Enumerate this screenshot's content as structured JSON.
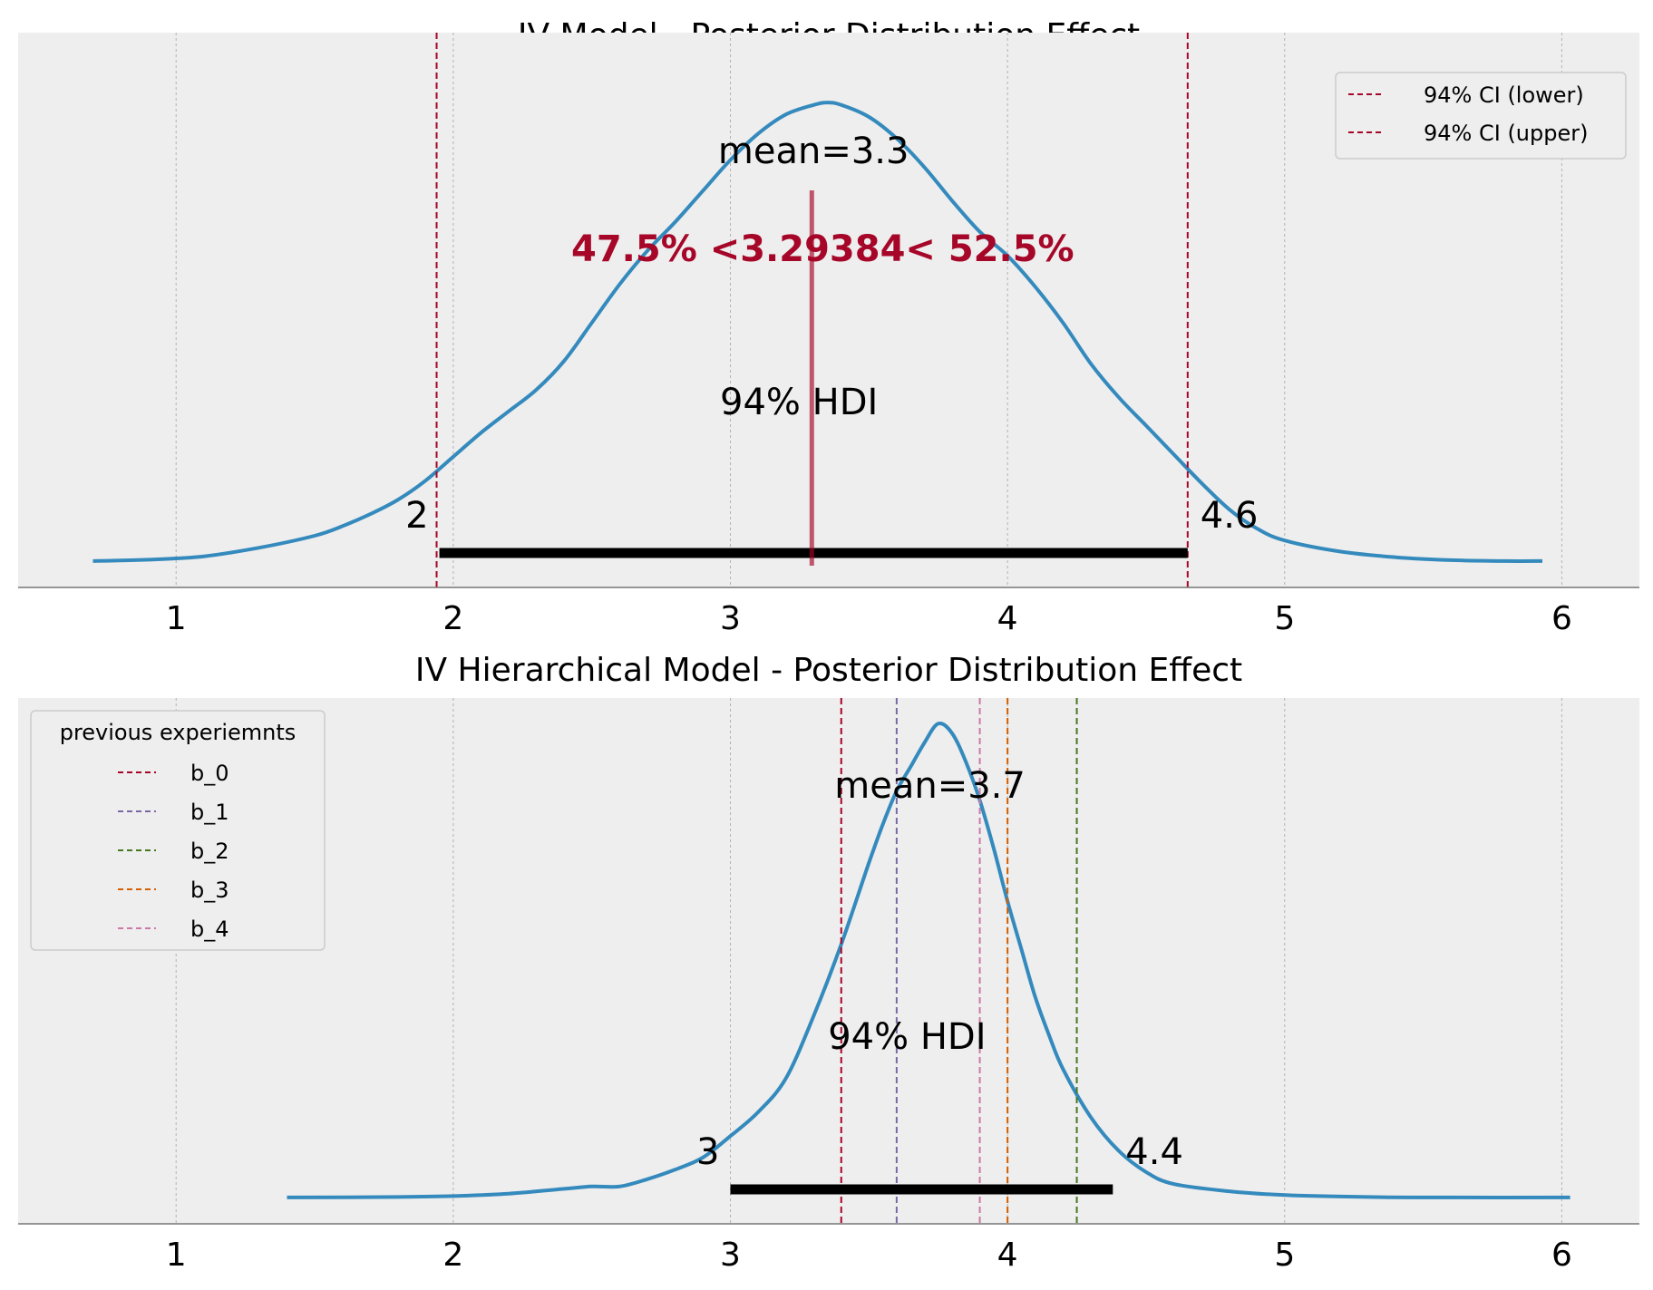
{
  "chart_data": [
    {
      "type": "area",
      "title": "IV Model - Posterior Distribution Effect",
      "xlim": [
        0.43,
        6.28
      ],
      "ylim": [
        -0.05,
        1.0
      ],
      "xticks": [
        1,
        2,
        3,
        4,
        5,
        6
      ],
      "xtick_labels": [
        "1",
        "2",
        "3",
        "4",
        "5",
        "6"
      ],
      "grid": "x",
      "legend_position": "top-right",
      "series": [
        {
          "x": [
            0.7,
            0.9,
            1.1,
            1.3,
            1.5,
            1.6,
            1.7,
            1.8,
            1.9,
            2.0,
            2.1,
            2.2,
            2.3,
            2.4,
            2.5,
            2.6,
            2.7,
            2.8,
            2.9,
            3.0,
            3.1,
            3.2,
            3.3,
            3.35,
            3.4,
            3.5,
            3.6,
            3.7,
            3.8,
            3.9,
            4.0,
            4.1,
            4.2,
            4.3,
            4.4,
            4.5,
            4.6,
            4.7,
            4.8,
            4.9,
            5.0,
            5.2,
            5.4,
            5.6,
            5.8,
            5.93
          ],
          "y": [
            0.002,
            0.005,
            0.012,
            0.03,
            0.055,
            0.075,
            0.1,
            0.13,
            0.17,
            0.22,
            0.27,
            0.315,
            0.36,
            0.42,
            0.5,
            0.58,
            0.65,
            0.71,
            0.775,
            0.84,
            0.895,
            0.935,
            0.955,
            0.96,
            0.955,
            0.93,
            0.885,
            0.825,
            0.755,
            0.69,
            0.64,
            0.575,
            0.5,
            0.415,
            0.345,
            0.285,
            0.225,
            0.165,
            0.11,
            0.07,
            0.045,
            0.022,
            0.01,
            0.004,
            0.002,
            0.002
          ],
          "color": "#348abd"
        }
      ],
      "mean_label": "mean=3.3",
      "reference_value": 3.29384,
      "reference_label": "47.5% <3.29384< 52.5%",
      "reference_color": "#a60628",
      "hdi": [
        1.95,
        4.65
      ],
      "hdi_label": "94% HDI",
      "hdi_low_label": "2",
      "hdi_high_label": "4.6",
      "vlines": [
        {
          "x": 1.94,
          "label": "94% CI (lower)",
          "color": "#a60628"
        },
        {
          "x": 4.65,
          "label": "94% CI (upper)",
          "color": "#a60628"
        }
      ]
    },
    {
      "type": "area",
      "title": "IV Hierarchical Model - Posterior Distribution Effect",
      "xlim": [
        0.43,
        6.28
      ],
      "ylim": [
        -0.05,
        1.0
      ],
      "xticks": [
        1,
        2,
        3,
        4,
        5,
        6
      ],
      "xtick_labels": [
        "1",
        "2",
        "3",
        "4",
        "5",
        "6"
      ],
      "grid": "x",
      "legend_position": "top-left",
      "legend_title": "previous experiemnts",
      "series": [
        {
          "x": [
            1.4,
            1.8,
            2.0,
            2.2,
            2.4,
            2.5,
            2.6,
            2.7,
            2.8,
            2.9,
            3.0,
            3.1,
            3.2,
            3.3,
            3.4,
            3.5,
            3.55,
            3.6,
            3.65,
            3.7,
            3.75,
            3.8,
            3.85,
            3.9,
            3.95,
            4.0,
            4.05,
            4.1,
            4.15,
            4.2,
            4.3,
            4.4,
            4.5,
            4.6,
            4.8,
            5.0,
            5.3,
            5.6,
            6.03
          ],
          "y": [
            0.002,
            0.003,
            0.005,
            0.01,
            0.02,
            0.025,
            0.025,
            0.04,
            0.06,
            0.085,
            0.13,
            0.18,
            0.25,
            0.38,
            0.53,
            0.7,
            0.78,
            0.85,
            0.9,
            0.95,
            0.99,
            0.97,
            0.91,
            0.83,
            0.73,
            0.62,
            0.52,
            0.42,
            0.34,
            0.27,
            0.17,
            0.1,
            0.055,
            0.03,
            0.015,
            0.007,
            0.003,
            0.002,
            0.002
          ],
          "color": "#348abd"
        }
      ],
      "mean_label": "mean=3.7",
      "hdi": [
        3.0,
        4.38
      ],
      "hdi_label": "94% HDI",
      "hdi_low_label": "3",
      "hdi_high_label": "4.4",
      "vlines": [
        {
          "x": 3.4,
          "label": "b_0",
          "color": "#a60628"
        },
        {
          "x": 3.6,
          "label": "b_1",
          "color": "#7a68a6"
        },
        {
          "x": 4.25,
          "label": "b_2",
          "color": "#467821"
        },
        {
          "x": 4.0,
          "label": "b_3",
          "color": "#d55e00"
        },
        {
          "x": 3.9,
          "label": "b_4",
          "color": "#cc79a7"
        }
      ]
    }
  ]
}
